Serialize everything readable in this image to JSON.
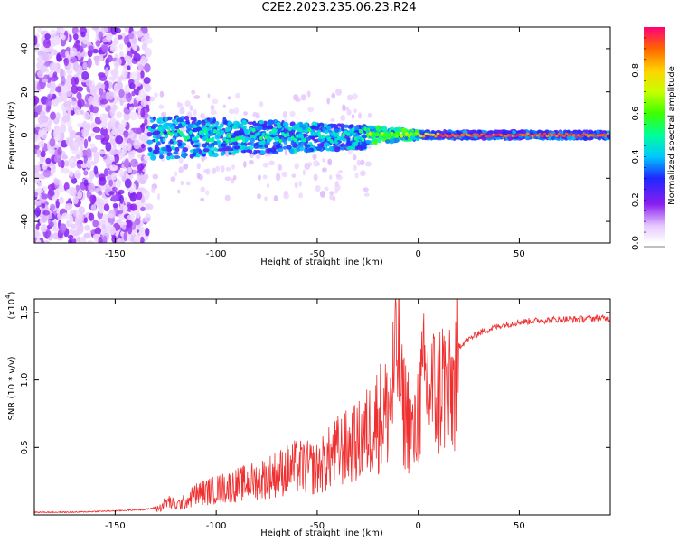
{
  "title": "C2E2.2023.235.06.23.R24",
  "chart_data": [
    {
      "type": "heatmap",
      "xlabel": "Height of straight line (km)",
      "ylabel": "Frequency (Hz)",
      "xlim": [
        -190,
        95
      ],
      "ylim": [
        -50,
        50
      ],
      "x_ticks": [
        -150,
        -100,
        -50,
        0,
        50
      ],
      "y_ticks": [
        -40,
        -20,
        0,
        20,
        40
      ],
      "colorbar": {
        "label": "Normalized spectral amplitude",
        "range": [
          0.0,
          1.0
        ],
        "ticks": [
          "0.0",
          "0.2",
          "0.4",
          "0.6",
          "0.8"
        ],
        "tick_values": [
          0.0,
          0.2,
          0.4,
          0.6,
          0.8
        ]
      },
      "description_of_pattern": [
        {
          "x_range": [
            -190,
            -133
          ],
          "frequency_spread": [
            -50,
            50
          ],
          "amplitude": 0.15
        },
        {
          "x_range": [
            -133,
            -25
          ],
          "frequency_spread": [
            -10,
            8
          ],
          "amplitude": 0.35
        },
        {
          "x_range": [
            -25,
            0
          ],
          "frequency_spread": [
            -3,
            3
          ],
          "amplitude": 0.6
        },
        {
          "x_range": [
            0,
            95
          ],
          "frequency_spread": [
            -1.5,
            1.5
          ],
          "amplitude": 0.95
        }
      ]
    },
    {
      "type": "line",
      "xlabel": "Height of straight line (km)",
      "ylabel": "SNR (10 * v/v)",
      "y_multiplier": "(x10",
      "y_multiplier_exp": "4",
      "xlim": [
        -190,
        95
      ],
      "ylim": [
        0,
        1.6
      ],
      "x_ticks": [
        -150,
        -100,
        -50,
        0,
        50
      ],
      "y_ticks": [
        0.5,
        1.0,
        1.5
      ],
      "y_tick_labels": [
        "0.5",
        "1.0",
        "1.5"
      ],
      "series": [
        {
          "color": "#f03030",
          "x": [
            -190,
            -170,
            -150,
            -135,
            -128,
            -124,
            -120,
            -115,
            -110,
            -100,
            -90,
            -80,
            -70,
            -60,
            -50,
            -40,
            -30,
            -25,
            -20,
            -15,
            -12,
            -10,
            -8,
            -5,
            -2,
            0,
            3,
            6,
            10,
            12,
            15,
            18,
            20,
            25,
            30,
            40,
            50,
            60,
            70,
            80,
            90,
            95
          ],
          "y": [
            0.02,
            0.02,
            0.03,
            0.04,
            0.06,
            0.12,
            0.08,
            0.12,
            0.18,
            0.22,
            0.26,
            0.3,
            0.36,
            0.42,
            0.4,
            0.55,
            0.62,
            0.72,
            0.85,
            0.9,
            1.2,
            1.55,
            0.95,
            0.85,
            0.65,
            0.92,
            1.15,
            1.1,
            1.05,
            1.2,
            1.0,
            1.15,
            1.25,
            1.3,
            1.35,
            1.4,
            1.43,
            1.44,
            1.45,
            1.45,
            1.46,
            1.45
          ]
        }
      ]
    }
  ]
}
